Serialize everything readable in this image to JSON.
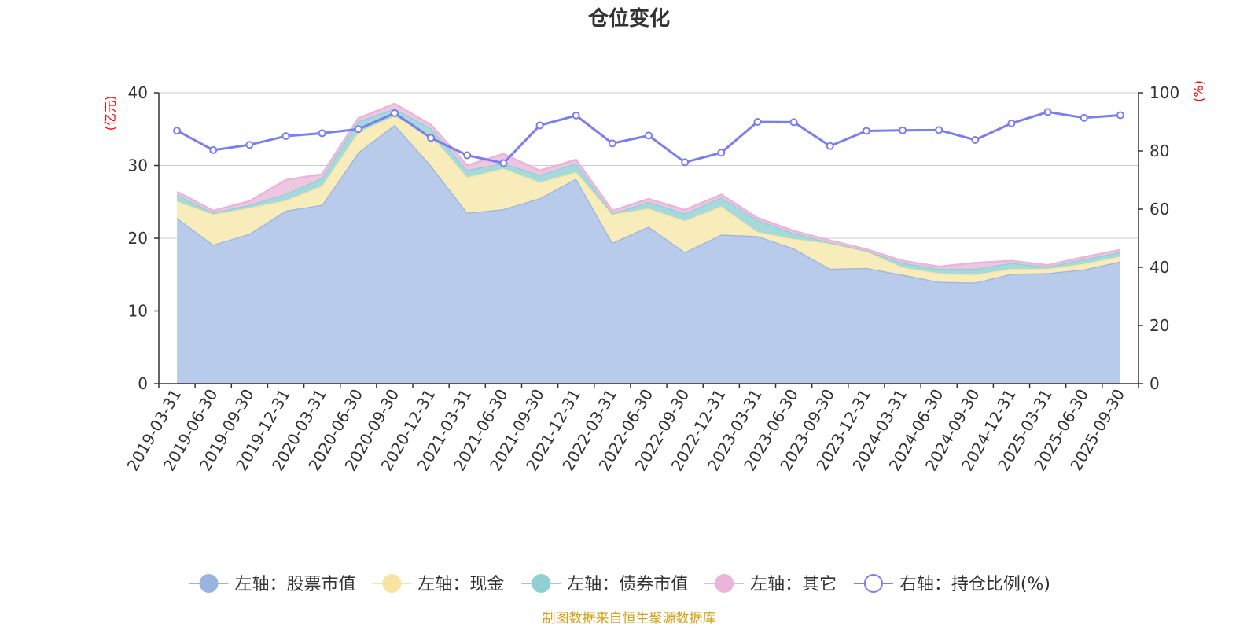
{
  "chart_data": {
    "type": "area",
    "title": "仓位变化",
    "left_axis_unit": "(亿元)",
    "right_axis_unit": "(%)",
    "unit_color": "#ff0000",
    "ylim_left": [
      0,
      40
    ],
    "yticks_left": [
      0,
      10,
      20,
      30,
      40
    ],
    "ylim_right": [
      0,
      100
    ],
    "yticks_right": [
      0,
      20,
      40,
      60,
      80,
      100
    ],
    "grid": true,
    "legend_position": "bottom",
    "categories": [
      "2019-03-31",
      "2019-06-30",
      "2019-09-30",
      "2019-12-31",
      "2020-03-31",
      "2020-06-30",
      "2020-09-30",
      "2020-12-31",
      "2021-03-31",
      "2021-06-30",
      "2021-09-30",
      "2021-12-31",
      "2022-03-31",
      "2022-06-30",
      "2022-09-30",
      "2022-12-31",
      "2023-03-31",
      "2023-06-30",
      "2023-09-30",
      "2023-12-31",
      "2024-03-31",
      "2024-06-30",
      "2024-09-30",
      "2024-12-31",
      "2025-03-31",
      "2025-06-30",
      "2025-09-30"
    ],
    "series": [
      {
        "name": "左轴：股票市值",
        "axis": "left",
        "kind": "stacked-area",
        "fill": "#b8cbea",
        "stroke": "#9ab4de",
        "values": [
          22.8,
          19.1,
          20.6,
          23.8,
          24.6,
          31.8,
          35.6,
          30.0,
          23.5,
          24.0,
          25.5,
          28.2,
          19.4,
          21.6,
          18.1,
          20.5,
          20.3,
          18.6,
          15.8,
          15.9,
          15.0,
          14.0,
          13.9,
          15.1,
          15.2,
          15.7,
          16.8
        ]
      },
      {
        "name": "左轴：现金",
        "axis": "left",
        "kind": "stacked-area",
        "fill": "#f8ecbb",
        "stroke": "#f6e4a0",
        "values": [
          2.3,
          4.2,
          3.6,
          1.4,
          2.6,
          2.8,
          1.2,
          4.2,
          4.9,
          5.6,
          2.2,
          0.9,
          3.9,
          2.5,
          4.3,
          3.9,
          0.6,
          1.3,
          3.5,
          2.3,
          1.0,
          1.2,
          1.1,
          0.7,
          0.6,
          0.8,
          0.7
        ]
      },
      {
        "name": "左轴：债券市值",
        "axis": "left",
        "kind": "stacked-area",
        "fill": "#a5d9dc",
        "stroke": "#8fd0d4",
        "values": [
          0.9,
          0.2,
          0.4,
          0.9,
          1.1,
          1.5,
          1.0,
          0.9,
          1.0,
          0.7,
          1.0,
          1.2,
          0.1,
          0.9,
          1.0,
          1.2,
          1.6,
          0.8,
          0.1,
          0.1,
          0.6,
          0.6,
          0.8,
          0.8,
          0.3,
          0.6,
          0.6
        ]
      },
      {
        "name": "左轴：其它",
        "axis": "left",
        "kind": "stacked-area",
        "fill": "#efc6e2",
        "stroke": "#e9b5d8",
        "values": [
          0.4,
          0.3,
          0.5,
          1.9,
          0.5,
          0.4,
          0.7,
          0.5,
          0.6,
          1.3,
          0.6,
          0.5,
          0.4,
          0.4,
          0.5,
          0.4,
          0.3,
          0.3,
          0.3,
          0.2,
          0.3,
          0.3,
          0.8,
          0.3,
          0.2,
          0.3,
          0.3
        ]
      },
      {
        "name": "右轴：持仓比例(%)",
        "axis": "right",
        "kind": "line",
        "stroke": "#7b7ef0",
        "values": [
          87.0,
          80.3,
          82.1,
          85.1,
          86.1,
          87.5,
          93.0,
          84.5,
          78.5,
          75.8,
          88.8,
          92.2,
          82.6,
          85.3,
          76.1,
          79.4,
          90.0,
          89.9,
          81.7,
          86.9,
          87.1,
          87.2,
          83.8,
          89.5,
          93.4,
          91.4,
          92.3
        ]
      }
    ],
    "legend": [
      {
        "label": "左轴：股票市值",
        "color": "#9ab4de",
        "marker": "filled"
      },
      {
        "label": "左轴：现金",
        "color": "#f6e4a0",
        "marker": "filled"
      },
      {
        "label": "左轴：债券市值",
        "color": "#8fd0d4",
        "marker": "filled"
      },
      {
        "label": "左轴：其它",
        "color": "#e9b5d8",
        "marker": "filled"
      },
      {
        "label": "右轴：持仓比例(%)",
        "color": "#7b7ef0",
        "marker": "hollow"
      }
    ]
  },
  "footer": {
    "text": "制图数据来自恒生聚源数据库",
    "color": "#d4a017"
  }
}
